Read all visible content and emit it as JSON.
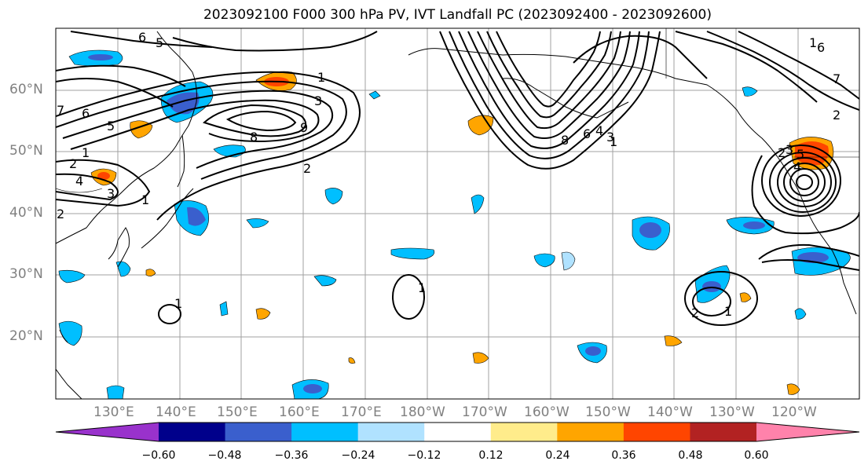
{
  "title": "2023092100 F000 300 hPa PV, IVT Landfall PC (2023092400 - 2023092600)",
  "lat_labels": [
    "60°N",
    "50°N",
    "40°N",
    "30°N",
    "20°N"
  ],
  "lon_labels": [
    "130°E",
    "140°E",
    "150°E",
    "160°E",
    "170°E",
    "180°W",
    "170°W",
    "160°W",
    "150°W",
    "140°W",
    "130°W",
    "120°W"
  ],
  "colorbar": {
    "ticks": [
      "−0.60",
      "−0.48",
      "−0.36",
      "−0.24",
      "−0.12",
      "0.12",
      "0.24",
      "0.36",
      "0.48",
      "0.60"
    ],
    "colors": [
      "#9932cc",
      "#00008b",
      "#3a5fcd",
      "#00bfff",
      "#b0e2ff",
      "#ffffff",
      "#ffec8b",
      "#ffa500",
      "#ff4500",
      "#b22222",
      "#ff82ab"
    ]
  },
  "contour_labels": [
    "6",
    "5",
    "7",
    "6",
    "8",
    "9",
    "1",
    "2",
    "3",
    "4",
    "5",
    "3",
    "1",
    "2",
    "1",
    "2",
    "1",
    "1",
    "2",
    "1",
    "8",
    "6",
    "4",
    "3",
    "2",
    "1",
    "2",
    "3",
    "4",
    "5",
    "6",
    "7",
    "1"
  ]
}
